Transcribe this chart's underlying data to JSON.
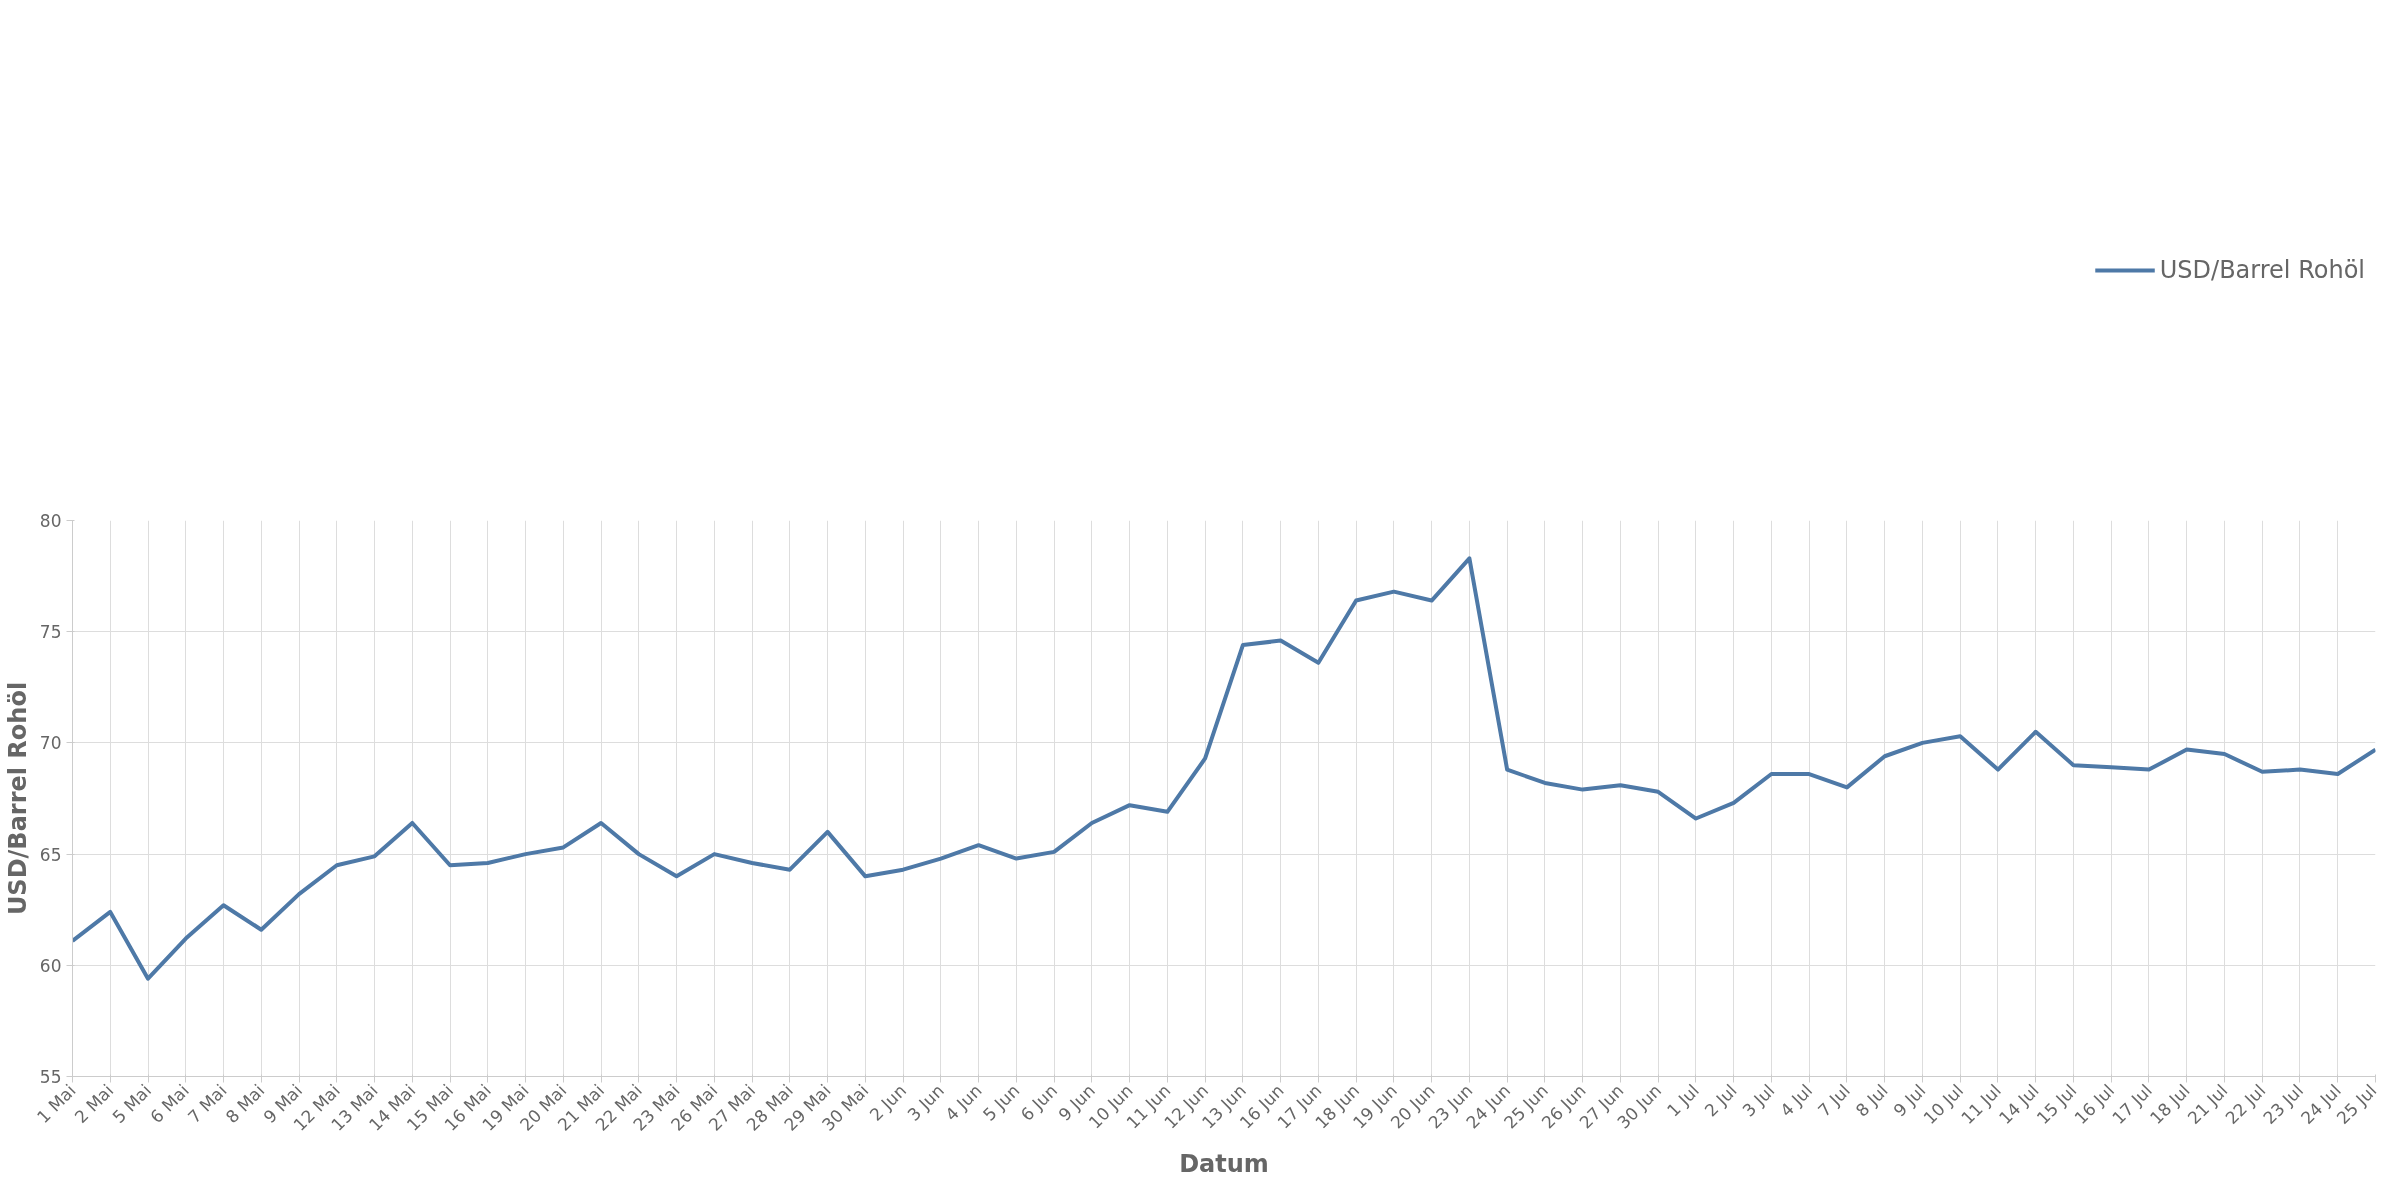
{
  "chart_data": {
    "type": "line",
    "xlabel": "Datum",
    "ylabel": "USD/Barrel Rohöl",
    "categories": [
      "1 Mai",
      "2 Mai",
      "5 Mai",
      "6 Mai",
      "7 Mai",
      "8 Mai",
      "9 Mai",
      "12 Mai",
      "13 Mai",
      "14 Mai",
      "15 Mai",
      "16 Mai",
      "19 Mai",
      "20 Mai",
      "21 Mai",
      "22 Mai",
      "23 Mai",
      "26 Mai",
      "27 Mai",
      "28 Mai",
      "29 Mai",
      "30 Mai",
      "2 Jun",
      "3 Jun",
      "4 Jun",
      "5 Jun",
      "6 Jun",
      "9 Jun",
      "10 Jun",
      "11 Jun",
      "12 Jun",
      "13 Jun",
      "16 Jun",
      "17 Jun",
      "18 Jun",
      "19 Jun",
      "20 Jun",
      "23 Jun",
      "24 Jun",
      "25 Jun",
      "26 Jun",
      "27 Jun",
      "30 Jun",
      "1 Jul",
      "2 Jul",
      "3 Jul",
      "4 Jul",
      "7 Jul",
      "8 Jul",
      "9 Jul",
      "10 Jul",
      "11 Jul",
      "14 Jul",
      "15 Jul",
      "16 Jul",
      "17 Jul",
      "18 Jul",
      "21 Jul",
      "22 Jul",
      "23 Jul",
      "24 Jul",
      "25 Jul"
    ],
    "series": [
      {
        "name": "USD/Barrel Rohöl",
        "color": "#4e79a7",
        "values": [
          61.1,
          62.4,
          59.4,
          61.2,
          62.7,
          61.6,
          63.2,
          64.5,
          64.9,
          66.4,
          64.5,
          64.6,
          65.0,
          65.3,
          66.4,
          65.0,
          64.0,
          65.0,
          64.6,
          64.3,
          66.0,
          64.0,
          64.3,
          64.8,
          65.4,
          64.8,
          65.1,
          66.4,
          67.2,
          66.9,
          69.3,
          74.4,
          74.6,
          73.6,
          76.4,
          76.8,
          76.4,
          78.3,
          68.8,
          68.2,
          67.9,
          68.1,
          67.8,
          66.6,
          67.3,
          68.6,
          68.6,
          68.0,
          69.4,
          70.0,
          70.3,
          68.8,
          70.5,
          69.0,
          68.9,
          68.8,
          69.7,
          69.5,
          68.7,
          68.8,
          68.6,
          69.7
        ]
      }
    ],
    "ylim": [
      55,
      80
    ],
    "yticks": [
      55,
      60,
      65,
      70,
      75,
      80
    ],
    "grid": true,
    "legend": "top right",
    "marker": "none",
    "line_style": "solid"
  }
}
